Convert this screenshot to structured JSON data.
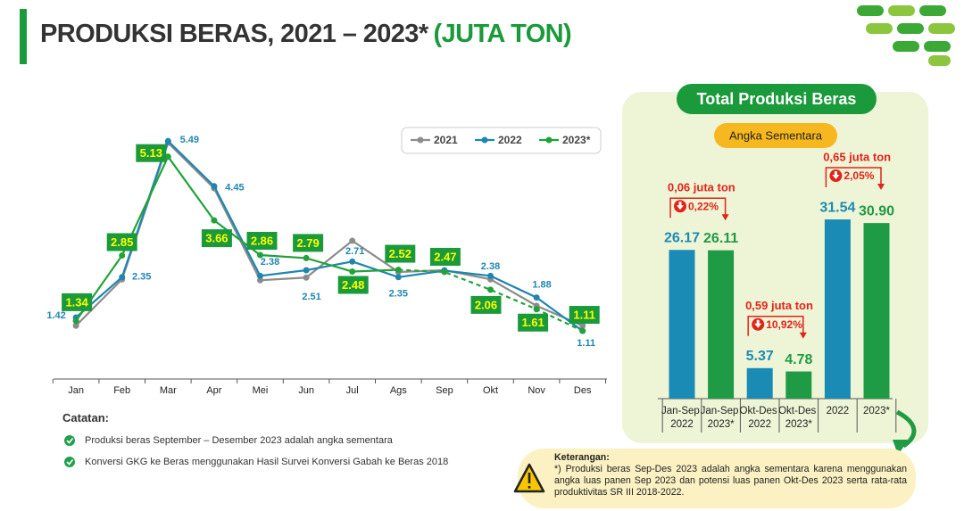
{
  "header": {
    "title": "PRODUKSI BERAS, 2021 – 2023*",
    "unit": "(JUTA TON)"
  },
  "chart_data": [
    {
      "type": "line",
      "categories": [
        "Jan",
        "Feb",
        "Mar",
        "Apr",
        "Mei",
        "Jun",
        "Jul",
        "Ags",
        "Sep",
        "Okt",
        "Nov",
        "Des"
      ],
      "ylim": [
        0,
        6
      ],
      "legend": "top-right",
      "series": [
        {
          "name": "2021",
          "color": "#8c8c8c",
          "label_style": "none",
          "values": [
            1.23,
            2.3,
            5.45,
            4.4,
            2.28,
            2.34,
            3.19,
            2.47,
            2.51,
            2.3,
            1.69,
            1.23
          ]
        },
        {
          "name": "2022",
          "color": "#1f86b0",
          "label_style": "plain",
          "values": [
            1.42,
            2.35,
            5.49,
            4.45,
            2.38,
            2.51,
            2.71,
            2.35,
            2.5,
            2.38,
            1.88,
            1.11
          ],
          "value_labels": [
            "1.42",
            "2.35",
            "5.49",
            "4.45",
            "2.38",
            "2.51",
            "2.71",
            "2.35",
            null,
            "2.38",
            "1.88",
            "1.11"
          ]
        },
        {
          "name": "2023*",
          "color": "#22a23a",
          "label_style": "box",
          "dashed_from": "Ags",
          "values": [
            1.34,
            2.85,
            5.13,
            3.66,
            2.86,
            2.79,
            2.48,
            2.52,
            2.47,
            2.06,
            1.61,
            1.11
          ]
        }
      ]
    },
    {
      "type": "bar",
      "title": "Total Produksi Beras",
      "subtitle": "Angka Sementara",
      "categories": [
        "Jan-Sep 2022",
        "Jan-Sep 2023*",
        "Okt-Des 2022",
        "Okt-Des 2023*",
        "2022",
        "2023*"
      ],
      "values": [
        26.17,
        26.11,
        5.37,
        4.78,
        31.54,
        30.9
      ],
      "value_labels": [
        "26.17",
        "26.11",
        "5.37",
        "4.78",
        "31.54",
        "30.90"
      ],
      "colors": [
        "#1a8bb5",
        "#1f9a45",
        "#1a8bb5",
        "#1f9a45",
        "#1a8bb5",
        "#1f9a45"
      ],
      "ylim": [
        0,
        35
      ],
      "annotations": [
        {
          "text": "0,06 juta ton",
          "change": "0,22%"
        },
        {
          "text": "0,59 juta ton",
          "change": "10,92%"
        },
        {
          "text": "0,65 juta ton",
          "change": "2,05%"
        }
      ]
    }
  ],
  "notes": {
    "title": "Catatan:",
    "items": [
      "Produksi beras September – Desember 2023 adalah angka sementara",
      "Konversi GKG ke Beras menggunakan Hasil Survei Konversi Gabah ke Beras 2018"
    ]
  },
  "remark": {
    "title": "Keterangan:",
    "text": "*) Produksi beras Sep-Des 2023 adalah angka sementara karena menggunakan angka luas panen Sep 2023 dan potensi luas panen Okt-Des 2023 serta rata-rata produktivitas SR III 2018-2022."
  }
}
